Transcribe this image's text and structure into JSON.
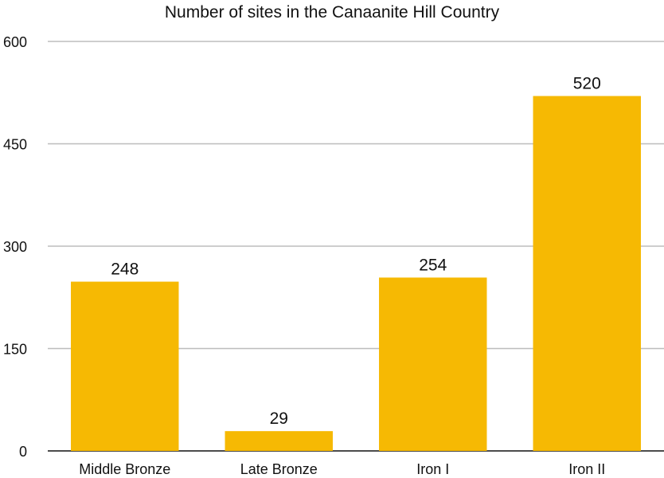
{
  "chart_data": {
    "type": "bar",
    "title": "Number of sites in the Canaanite Hill Country",
    "xlabel": "",
    "ylabel": "",
    "categories": [
      "Middle Bronze",
      "Late Bronze",
      "Iron I",
      "Iron II"
    ],
    "values": [
      248,
      29,
      254,
      520
    ],
    "ylim": [
      0,
      600
    ],
    "yticks": [
      0,
      150,
      300,
      450,
      600
    ],
    "grid": true,
    "legend": "none",
    "data_labels": true
  },
  "colors": {
    "bar": "#F6B903",
    "grid": "#bdbdbd",
    "axis": "#111111",
    "text": "#111111"
  }
}
